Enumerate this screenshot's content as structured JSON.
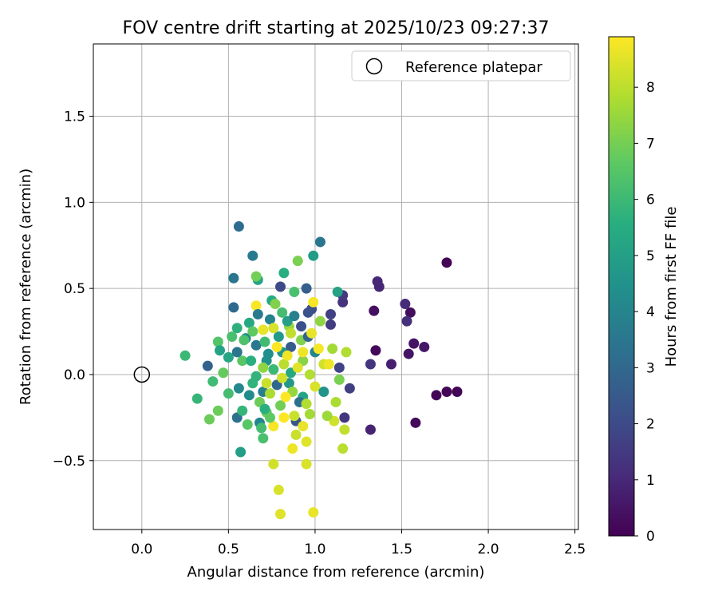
{
  "chart_data": {
    "type": "scatter",
    "title": "FOV centre drift starting at 2025/10/23 09:27:37",
    "xlabel": "Angular distance from reference (arcmin)",
    "ylabel": "Rotation from reference (arcmin)",
    "xlim": [
      -0.28,
      2.52
    ],
    "ylim": [
      -0.9,
      1.92
    ],
    "xticks": [
      0.0,
      0.5,
      1.0,
      1.5,
      2.0,
      2.5
    ],
    "xtick_labels": [
      "0.0",
      "0.5",
      "1.0",
      "1.5",
      "2.0",
      "2.5"
    ],
    "yticks": [
      -0.5,
      0.0,
      0.5,
      1.0,
      1.5
    ],
    "ytick_labels": [
      "−0.5",
      "0.0",
      "0.5",
      "1.0",
      "1.5"
    ],
    "grid": true,
    "legend": {
      "position": "top-right",
      "entries": [
        "Reference platepar"
      ]
    },
    "reference_point": {
      "x": 0.0,
      "y": 0.0
    },
    "colorbar": {
      "label": "Hours from first FF file",
      "range": [
        0,
        8.9
      ],
      "ticks": [
        0,
        1,
        2,
        3,
        4,
        5,
        6,
        7,
        8
      ],
      "tick_labels": [
        "0",
        "1",
        "2",
        "3",
        "4",
        "5",
        "6",
        "7",
        "8"
      ],
      "colormap": "viridis"
    },
    "points": [
      {
        "x": 1.76,
        "y": 0.65,
        "h": 0.1
      },
      {
        "x": 1.7,
        "y": -0.12,
        "h": 0.1
      },
      {
        "x": 1.76,
        "y": -0.1,
        "h": 0.1
      },
      {
        "x": 1.82,
        "y": -0.1,
        "h": 0.1
      },
      {
        "x": 1.58,
        "y": -0.28,
        "h": 0.2
      },
      {
        "x": 1.35,
        "y": 0.14,
        "h": 0.2
      },
      {
        "x": 1.55,
        "y": 0.36,
        "h": 0.3
      },
      {
        "x": 1.34,
        "y": 0.37,
        "h": 0.4
      },
      {
        "x": 1.57,
        "y": 0.18,
        "h": 0.5
      },
      {
        "x": 1.54,
        "y": 0.12,
        "h": 0.5
      },
      {
        "x": 1.63,
        "y": 0.16,
        "h": 0.6
      },
      {
        "x": 1.44,
        "y": 0.06,
        "h": 0.8
      },
      {
        "x": 1.32,
        "y": -0.32,
        "h": 0.9
      },
      {
        "x": 1.36,
        "y": 0.54,
        "h": 1.0
      },
      {
        "x": 1.37,
        "y": 0.51,
        "h": 1.0
      },
      {
        "x": 1.52,
        "y": 0.41,
        "h": 1.1
      },
      {
        "x": 1.53,
        "y": 0.31,
        "h": 1.2
      },
      {
        "x": 1.16,
        "y": 0.42,
        "h": 1.3
      },
      {
        "x": 1.32,
        "y": 0.06,
        "h": 1.4
      },
      {
        "x": 1.17,
        "y": -0.25,
        "h": 1.4
      },
      {
        "x": 1.16,
        "y": 0.46,
        "h": 1.5
      },
      {
        "x": 1.09,
        "y": 0.29,
        "h": 1.6
      },
      {
        "x": 1.09,
        "y": 0.35,
        "h": 1.7
      },
      {
        "x": 1.2,
        "y": -0.08,
        "h": 1.7
      },
      {
        "x": 1.14,
        "y": 0.04,
        "h": 1.8
      },
      {
        "x": 0.8,
        "y": 0.51,
        "h": 2.0
      },
      {
        "x": 0.98,
        "y": 0.38,
        "h": 2.1
      },
      {
        "x": 0.92,
        "y": 0.28,
        "h": 2.2
      },
      {
        "x": 0.96,
        "y": 0.36,
        "h": 2.3
      },
      {
        "x": 0.89,
        "y": -0.27,
        "h": 2.4
      },
      {
        "x": 0.86,
        "y": 0.16,
        "h": 2.6
      },
      {
        "x": 0.95,
        "y": 0.5,
        "h": 2.7
      },
      {
        "x": 0.38,
        "y": 0.05,
        "h": 2.8
      },
      {
        "x": 0.53,
        "y": 0.39,
        "h": 3.1
      },
      {
        "x": 0.56,
        "y": 0.86,
        "h": 3.2
      },
      {
        "x": 0.55,
        "y": -0.25,
        "h": 3.3
      },
      {
        "x": 1.03,
        "y": 0.77,
        "h": 3.5
      },
      {
        "x": 0.53,
        "y": 0.56,
        "h": 3.5
      },
      {
        "x": 0.66,
        "y": 0.17,
        "h": 3.6
      },
      {
        "x": 0.64,
        "y": 0.69,
        "h": 3.7
      },
      {
        "x": 0.7,
        "y": -0.1,
        "h": 3.8
      },
      {
        "x": 0.74,
        "y": 0.32,
        "h": 4.0
      },
      {
        "x": 0.68,
        "y": -0.28,
        "h": 4.1
      },
      {
        "x": 0.56,
        "y": -0.08,
        "h": 4.2
      },
      {
        "x": 0.6,
        "y": 0.21,
        "h": 4.3
      },
      {
        "x": 0.72,
        "y": 0.08,
        "h": 4.5
      },
      {
        "x": 0.81,
        "y": 0.13,
        "h": 4.6
      },
      {
        "x": 0.85,
        "y": -0.05,
        "h": 4.7
      },
      {
        "x": 0.99,
        "y": 0.69,
        "h": 4.9
      },
      {
        "x": 0.57,
        "y": -0.45,
        "h": 5.0
      },
      {
        "x": 1.13,
        "y": 0.48,
        "h": 5.1
      },
      {
        "x": 0.67,
        "y": 0.55,
        "h": 5.2
      },
      {
        "x": 0.5,
        "y": 0.1,
        "h": 5.3
      },
      {
        "x": 0.62,
        "y": 0.3,
        "h": 5.4
      },
      {
        "x": 0.75,
        "y": 0.43,
        "h": 5.5
      },
      {
        "x": 0.82,
        "y": 0.59,
        "h": 5.6
      },
      {
        "x": 0.55,
        "y": 0.27,
        "h": 5.7
      },
      {
        "x": 0.66,
        "y": -0.01,
        "h": 5.8
      },
      {
        "x": 0.32,
        "y": -0.14,
        "h": 5.9
      },
      {
        "x": 0.25,
        "y": 0.11,
        "h": 6.0
      },
      {
        "x": 0.41,
        "y": -0.04,
        "h": 6.1
      },
      {
        "x": 0.5,
        "y": -0.11,
        "h": 6.2
      },
      {
        "x": 0.7,
        "y": -0.37,
        "h": 6.3
      },
      {
        "x": 0.88,
        "y": 0.48,
        "h": 6.3
      },
      {
        "x": 0.44,
        "y": 0.19,
        "h": 6.5
      },
      {
        "x": 0.58,
        "y": 0.08,
        "h": 6.6
      },
      {
        "x": 0.64,
        "y": 0.25,
        "h": 6.7
      },
      {
        "x": 0.72,
        "y": -0.22,
        "h": 6.8
      },
      {
        "x": 0.39,
        "y": -0.26,
        "h": 6.9
      },
      {
        "x": 0.44,
        "y": -0.21,
        "h": 6.9
      },
      {
        "x": 0.66,
        "y": 0.57,
        "h": 7.0
      },
      {
        "x": 0.9,
        "y": 0.66,
        "h": 7.1
      },
      {
        "x": 0.77,
        "y": 0.41,
        "h": 7.2
      },
      {
        "x": 0.93,
        "y": 0.08,
        "h": 7.3
      },
      {
        "x": 0.7,
        "y": 0.04,
        "h": 7.4
      },
      {
        "x": 0.85,
        "y": 0.28,
        "h": 7.5
      },
      {
        "x": 0.97,
        "y": -0.23,
        "h": 7.7
      },
      {
        "x": 1.18,
        "y": 0.13,
        "h": 7.9
      },
      {
        "x": 1.16,
        "y": -0.43,
        "h": 8.0
      },
      {
        "x": 1.17,
        "y": -0.32,
        "h": 8.1
      },
      {
        "x": 0.89,
        "y": -0.35,
        "h": 8.2
      },
      {
        "x": 0.76,
        "y": -0.52,
        "h": 8.3
      },
      {
        "x": 0.79,
        "y": -0.67,
        "h": 8.4
      },
      {
        "x": 0.8,
        "y": -0.81,
        "h": 8.5
      },
      {
        "x": 0.99,
        "y": -0.8,
        "h": 8.6
      },
      {
        "x": 0.95,
        "y": -0.52,
        "h": 8.4
      },
      {
        "x": 0.87,
        "y": -0.43,
        "h": 8.7
      },
      {
        "x": 0.66,
        "y": 0.4,
        "h": 8.8
      },
      {
        "x": 0.99,
        "y": 0.42,
        "h": 8.8
      },
      {
        "x": 0.82,
        "y": -0.25,
        "h": 8.9
      },
      {
        "x": 0.7,
        "y": 0.26,
        "h": 8.6
      },
      {
        "x": 0.78,
        "y": 0.16,
        "h": 8.9
      },
      {
        "x": 0.93,
        "y": 0.13,
        "h": 8.7
      },
      {
        "x": 1.05,
        "y": 0.06,
        "h": 8.3
      },
      {
        "x": 0.76,
        "y": -0.3,
        "h": 8.8
      },
      {
        "x": 0.88,
        "y": -0.24,
        "h": 8.2
      },
      {
        "x": 1.0,
        "y": -0.07,
        "h": 8.4
      },
      {
        "x": 0.82,
        "y": 0.06,
        "h": 8.0
      },
      {
        "x": 0.95,
        "y": -0.39,
        "h": 8.5
      },
      {
        "x": 1.11,
        "y": -0.27,
        "h": 8.3
      },
      {
        "x": 0.74,
        "y": -0.11,
        "h": 7.8
      },
      {
        "x": 1.07,
        "y": -0.24,
        "h": 7.6
      },
      {
        "x": 0.92,
        "y": 0.2,
        "h": 7.2
      },
      {
        "x": 0.8,
        "y": -0.18,
        "h": 7.0
      },
      {
        "x": 0.68,
        "y": -0.16,
        "h": 6.9
      },
      {
        "x": 0.61,
        "y": -0.29,
        "h": 6.6
      },
      {
        "x": 0.59,
        "y": 0.2,
        "h": 6.4
      },
      {
        "x": 0.69,
        "y": -0.31,
        "h": 6.2
      },
      {
        "x": 0.76,
        "y": 0.03,
        "h": 6.0
      },
      {
        "x": 0.64,
        "y": -0.05,
        "h": 5.8
      },
      {
        "x": 0.71,
        "y": -0.2,
        "h": 5.6
      },
      {
        "x": 0.86,
        "y": 0.01,
        "h": 5.4
      },
      {
        "x": 0.93,
        "y": -0.13,
        "h": 5.2
      },
      {
        "x": 0.84,
        "y": 0.31,
        "h": 5.0
      },
      {
        "x": 0.79,
        "y": 0.22,
        "h": 4.8
      },
      {
        "x": 1.05,
        "y": -0.1,
        "h": 4.6
      },
      {
        "x": 0.73,
        "y": 0.12,
        "h": 4.4
      },
      {
        "x": 0.62,
        "y": -0.12,
        "h": 4.3
      },
      {
        "x": 1.0,
        "y": 0.13,
        "h": 4.1
      },
      {
        "x": 0.88,
        "y": 0.34,
        "h": 3.9
      },
      {
        "x": 0.67,
        "y": 0.35,
        "h": 3.7
      },
      {
        "x": 0.55,
        "y": 0.13,
        "h": 3.5
      },
      {
        "x": 0.91,
        "y": -0.16,
        "h": 3.3
      },
      {
        "x": 0.78,
        "y": -0.06,
        "h": 3.0
      },
      {
        "x": 0.96,
        "y": 0.22,
        "h": 2.9
      },
      {
        "x": 0.71,
        "y": 0.19,
        "h": 6.1
      },
      {
        "x": 0.74,
        "y": -0.25,
        "h": 6.7
      },
      {
        "x": 0.81,
        "y": 0.36,
        "h": 6.2
      },
      {
        "x": 0.87,
        "y": -0.1,
        "h": 7.5
      },
      {
        "x": 0.97,
        "y": 0.0,
        "h": 7.9
      },
      {
        "x": 1.03,
        "y": 0.31,
        "h": 7.4
      },
      {
        "x": 1.1,
        "y": 0.15,
        "h": 7.7
      },
      {
        "x": 1.14,
        "y": -0.03,
        "h": 7.1
      },
      {
        "x": 0.63,
        "y": 0.08,
        "h": 5.6
      },
      {
        "x": 0.58,
        "y": -0.21,
        "h": 5.9
      },
      {
        "x": 0.52,
        "y": 0.22,
        "h": 6.3
      },
      {
        "x": 0.47,
        "y": 0.01,
        "h": 6.8
      },
      {
        "x": 0.45,
        "y": 0.14,
        "h": 5.1
      },
      {
        "x": 0.84,
        "y": 0.11,
        "h": 8.7
      },
      {
        "x": 0.9,
        "y": 0.04,
        "h": 8.5
      },
      {
        "x": 0.76,
        "y": 0.27,
        "h": 8.4
      },
      {
        "x": 0.83,
        "y": -0.13,
        "h": 8.9
      },
      {
        "x": 0.98,
        "y": 0.24,
        "h": 8.6
      },
      {
        "x": 1.02,
        "y": 0.15,
        "h": 8.8
      },
      {
        "x": 0.72,
        "y": -0.05,
        "h": 8.2
      },
      {
        "x": 0.86,
        "y": 0.24,
        "h": 8.1
      },
      {
        "x": 0.93,
        "y": -0.3,
        "h": 8.6
      },
      {
        "x": 1.08,
        "y": 0.06,
        "h": 8.7
      },
      {
        "x": 0.81,
        "y": -0.02,
        "h": 8.3
      },
      {
        "x": 0.95,
        "y": -0.17,
        "h": 7.9
      },
      {
        "x": 1.12,
        "y": -0.16,
        "h": 7.8
      }
    ]
  }
}
